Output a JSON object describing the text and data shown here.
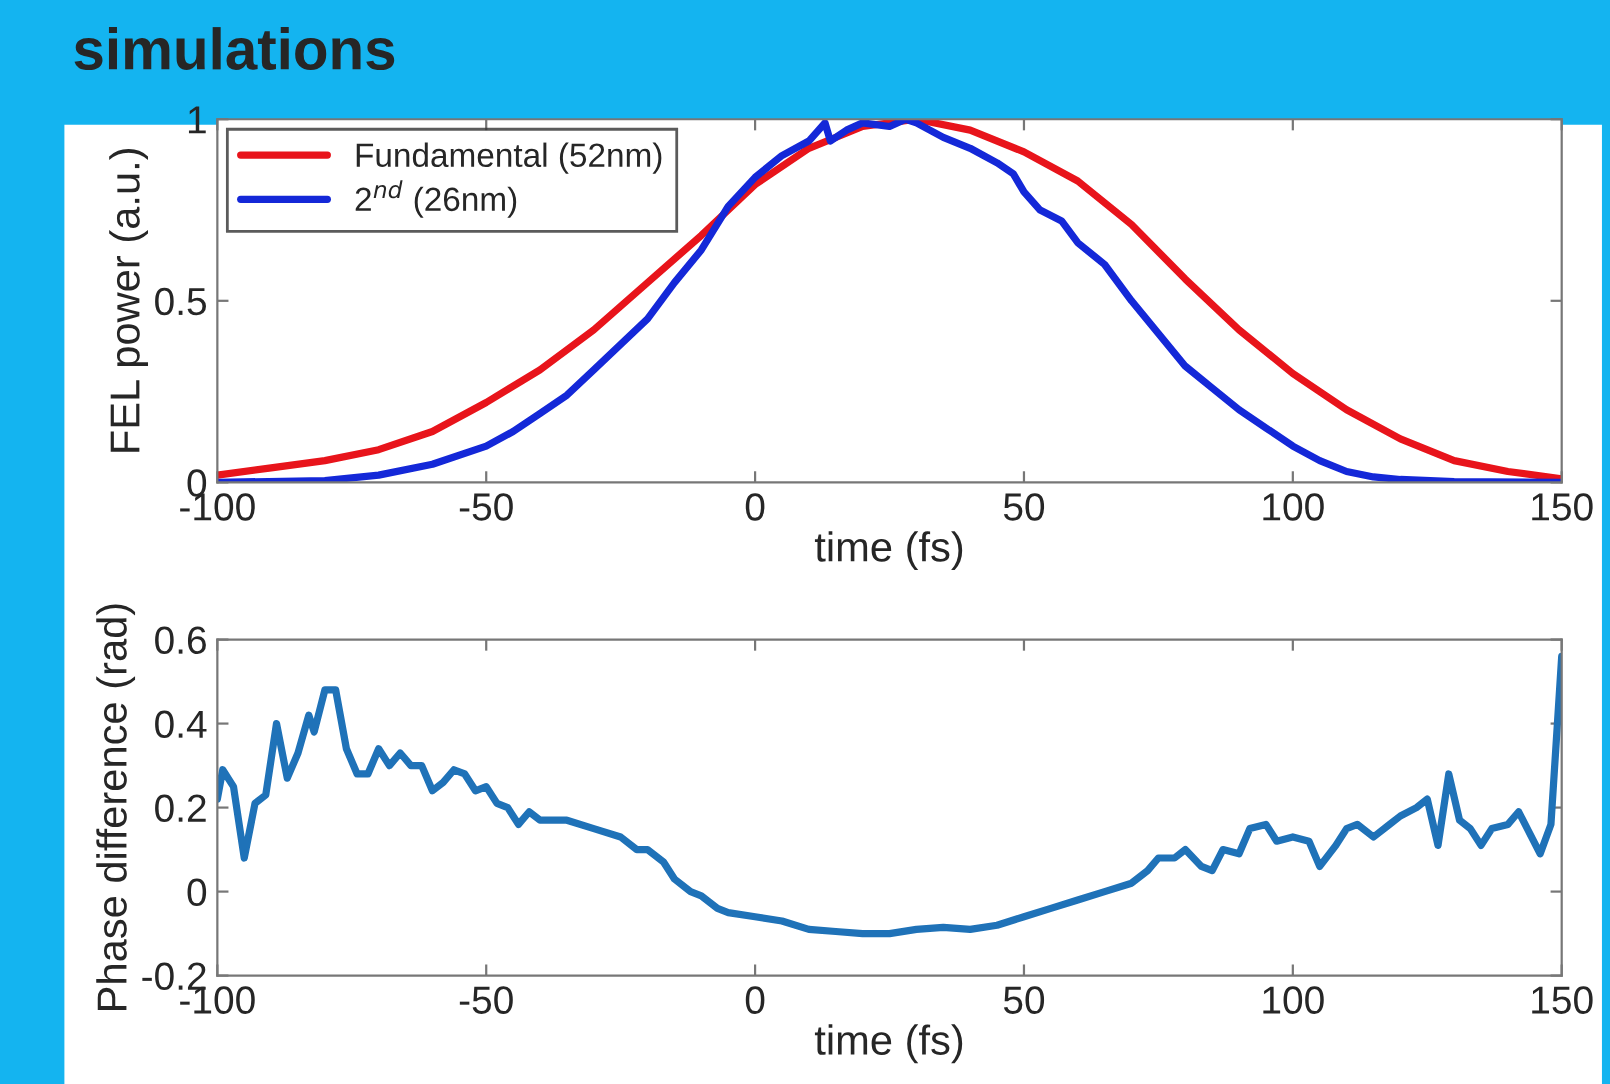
{
  "chart_data": [
    {
      "type": "line",
      "title": "simulations",
      "xlabel": "time (fs)",
      "ylabel": "FEL power (a.u.)",
      "xlim": [
        -100,
        150
      ],
      "xticks": [
        -100,
        -50,
        0,
        50,
        100,
        150
      ],
      "ylim": [
        0,
        1
      ],
      "yticks": [
        0,
        0.5,
        1
      ],
      "grid": false,
      "legend": "top left",
      "marker": "none",
      "line_style": "solid",
      "series": [
        {
          "name": "Fundamental (52nm)",
          "color": "#e8141b",
          "x": [
            -100,
            -90,
            -80,
            -70,
            -60,
            -50,
            -40,
            -30,
            -20,
            -10,
            0,
            10,
            20,
            30,
            40,
            50,
            60,
            70,
            80,
            90,
            100,
            110,
            120,
            130,
            140,
            150
          ],
          "values": [
            0.02,
            0.04,
            0.06,
            0.09,
            0.14,
            0.22,
            0.31,
            0.42,
            0.55,
            0.68,
            0.82,
            0.92,
            0.98,
            1.0,
            0.97,
            0.91,
            0.83,
            0.71,
            0.56,
            0.42,
            0.3,
            0.2,
            0.12,
            0.06,
            0.03,
            0.01
          ]
        },
        {
          "name": "2$^{nd}$ (26nm)",
          "color": "#1428d8",
          "x": [
            -100,
            -80,
            -70,
            -60,
            -50,
            -45,
            -40,
            -35,
            -30,
            -25,
            -20,
            -15,
            -10,
            -5,
            0,
            5,
            10,
            13,
            14,
            17,
            20,
            25,
            28,
            30,
            35,
            40,
            45,
            48,
            50,
            53,
            57,
            60,
            65,
            70,
            75,
            80,
            85,
            90,
            95,
            100,
            105,
            110,
            115,
            120,
            130,
            150
          ],
          "values": [
            0,
            0.005,
            0.02,
            0.05,
            0.1,
            0.14,
            0.19,
            0.24,
            0.31,
            0.38,
            0.45,
            0.55,
            0.64,
            0.76,
            0.84,
            0.9,
            0.94,
            0.99,
            0.94,
            0.97,
            0.99,
            0.98,
            1.0,
            0.99,
            0.95,
            0.92,
            0.88,
            0.85,
            0.8,
            0.75,
            0.72,
            0.66,
            0.6,
            0.5,
            0.41,
            0.32,
            0.26,
            0.2,
            0.15,
            0.1,
            0.06,
            0.03,
            0.015,
            0.008,
            0.002,
            0
          ]
        }
      ]
    },
    {
      "type": "line",
      "xlabel": "time (fs)",
      "ylabel": "Phase difference (rad)",
      "xlim": [
        -100,
        150
      ],
      "xticks": [
        -100,
        -50,
        0,
        50,
        100,
        150
      ],
      "ylim": [
        -0.2,
        0.6
      ],
      "yticks": [
        -0.2,
        0,
        0.2,
        0.4,
        0.6
      ],
      "grid": false,
      "marker": "none",
      "line_style": "solid",
      "series": [
        {
          "color": "#1f72b8",
          "x": [
            -100,
            -99,
            -97,
            -95,
            -93,
            -91,
            -89,
            -87,
            -85,
            -83,
            -82,
            -80,
            -78,
            -76,
            -74,
            -72,
            -70,
            -68,
            -66,
            -64,
            -62,
            -60,
            -58,
            -56,
            -54,
            -52,
            -50,
            -48,
            -46,
            -44,
            -42,
            -40,
            -35,
            -30,
            -25,
            -22,
            -20,
            -17,
            -15,
            -12,
            -10,
            -7,
            -5,
            0,
            5,
            10,
            15,
            20,
            25,
            30,
            35,
            40,
            45,
            50,
            55,
            60,
            65,
            70,
            73,
            75,
            78,
            80,
            83,
            85,
            87,
            90,
            92,
            95,
            97,
            100,
            103,
            105,
            108,
            110,
            112,
            115,
            118,
            120,
            123,
            125,
            127,
            129,
            131,
            133,
            135,
            137,
            140,
            142,
            144,
            146,
            148,
            150
          ],
          "values": [
            0.22,
            0.29,
            0.25,
            0.08,
            0.21,
            0.23,
            0.4,
            0.27,
            0.33,
            0.42,
            0.38,
            0.48,
            0.48,
            0.34,
            0.28,
            0.28,
            0.34,
            0.3,
            0.33,
            0.3,
            0.3,
            0.24,
            0.26,
            0.29,
            0.28,
            0.24,
            0.25,
            0.21,
            0.2,
            0.16,
            0.19,
            0.17,
            0.17,
            0.15,
            0.13,
            0.1,
            0.1,
            0.07,
            0.03,
            0.0,
            -0.01,
            -0.04,
            -0.05,
            -0.06,
            -0.07,
            -0.09,
            -0.095,
            -0.1,
            -0.1,
            -0.09,
            -0.085,
            -0.09,
            -0.08,
            -0.06,
            -0.04,
            -0.02,
            0.0,
            0.02,
            0.05,
            0.08,
            0.08,
            0.1,
            0.06,
            0.05,
            0.1,
            0.09,
            0.15,
            0.16,
            0.12,
            0.13,
            0.12,
            0.06,
            0.11,
            0.15,
            0.16,
            0.13,
            0.16,
            0.18,
            0.2,
            0.22,
            0.11,
            0.28,
            0.17,
            0.15,
            0.11,
            0.15,
            0.16,
            0.19,
            0.14,
            0.09,
            0.16,
            0.56
          ]
        }
      ]
    }
  ]
}
